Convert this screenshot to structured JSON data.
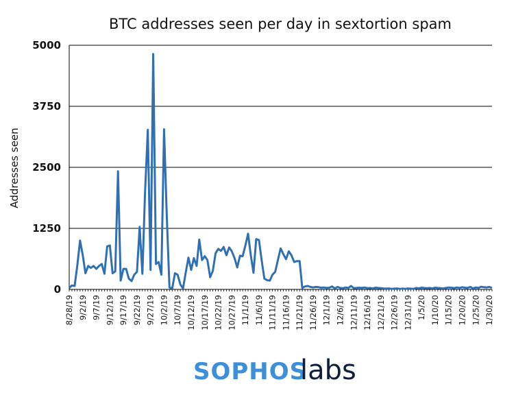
{
  "chart_data": {
    "type": "line",
    "title": "BTC addresses seen per day in sextortion spam",
    "xlabel": "",
    "ylabel": "Addresses seen",
    "ylim": [
      0,
      5000
    ],
    "yticks": [
      "0",
      "1250",
      "2500",
      "3750",
      "5000"
    ],
    "ytick_values": [
      0,
      1250,
      2500,
      3750,
      5000
    ],
    "grid": true,
    "tick_every_days": 5,
    "tick_labels": [
      "8/28/19",
      "9/2/19",
      "9/7/19",
      "9/12/19",
      "9/17/19",
      "9/22/19",
      "9/27/19",
      "10/2/19",
      "10/7/19",
      "10/12/19",
      "10/17/19",
      "10/22/19",
      "10/27/19",
      "11/1/19",
      "11/6/19",
      "11/11/19",
      "11/16/19",
      "11/21/19",
      "11/26/19",
      "12/1/19",
      "12/6/19",
      "12/11/19",
      "12/16/19",
      "12/21/19",
      "12/26/19",
      "12/31/19",
      "1/5/20",
      "1/10/20",
      "1/15/20",
      "1/20/20",
      "1/25/20",
      "1/30/20"
    ],
    "series": [
      {
        "name": "Addresses seen",
        "color": "#2f6fb2",
        "values": [
          30,
          80,
          70,
          500,
          1000,
          700,
          330,
          480,
          440,
          480,
          420,
          480,
          520,
          320,
          880,
          900,
          330,
          370,
          2420,
          180,
          420,
          420,
          220,
          170,
          300,
          360,
          1280,
          320,
          2000,
          3270,
          400,
          4820,
          520,
          560,
          300,
          3280,
          1500,
          40,
          20,
          330,
          300,
          100,
          20,
          350,
          650,
          400,
          640,
          480,
          1020,
          600,
          680,
          600,
          250,
          380,
          740,
          830,
          790,
          870,
          700,
          860,
          780,
          640,
          450,
          690,
          680,
          900,
          1140,
          700,
          340,
          1030,
          1010,
          600,
          220,
          190,
          180,
          300,
          360,
          600,
          840,
          720,
          620,
          780,
          700,
          560,
          580,
          580,
          30,
          60,
          70,
          50,
          40,
          50,
          45,
          35,
          40,
          30,
          35,
          60,
          20,
          50,
          30,
          25,
          40,
          30,
          70,
          25,
          30,
          35,
          30,
          40,
          25,
          30,
          20,
          35,
          30,
          25,
          20,
          15,
          20,
          10,
          15,
          20,
          10,
          15,
          10,
          20,
          15,
          10,
          30,
          20,
          35,
          30,
          25,
          30,
          20,
          35,
          30,
          25,
          20,
          30,
          40,
          35,
          25,
          40,
          30,
          45,
          35,
          30,
          50,
          20,
          40,
          30,
          55,
          45,
          40,
          50,
          30
        ]
      }
    ]
  },
  "logo": {
    "part1": "SOPHOS",
    "part2": "labs",
    "color1": "#3d8fd8",
    "color2": "#0f1f3d"
  }
}
